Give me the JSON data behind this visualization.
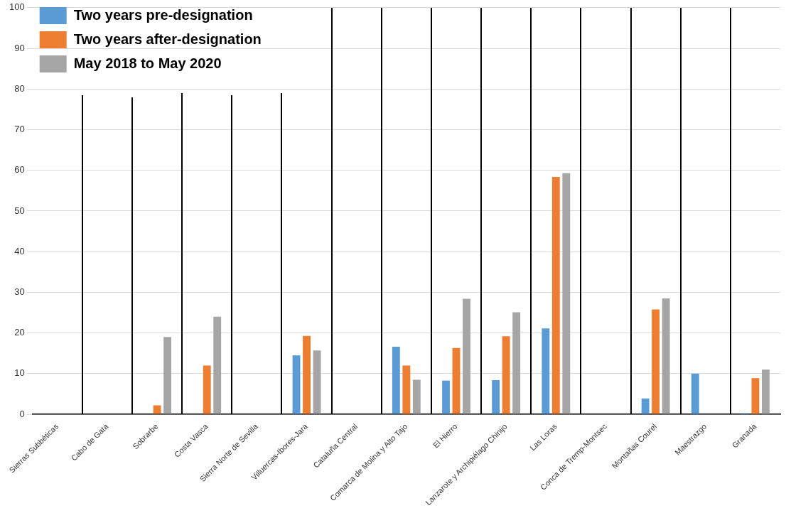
{
  "chart_data": {
    "type": "bar",
    "categories": [
      "Sierras Subbéticas",
      "Cabo de Gata",
      "Sobrarbe",
      "Costa Vasca",
      "Sierra Norte de Sevilla",
      "Villuercas-Ibores-Jara",
      "Cataluña Central",
      "Comarca de Molina y Alto Tajo",
      "El Hierro",
      "Lanzarote y Archipiélago Chinijo",
      "Las Loras",
      "Conca de Tremp-Montsec",
      "Montañas Courel",
      "Maestrazgo",
      "Granada"
    ],
    "series": [
      {
        "name": "Two years pre-designation",
        "color": "#5b9bd5",
        "values": [
          0,
          0,
          0,
          0,
          0,
          14.5,
          0,
          16.6,
          8.3,
          8.4,
          21.1,
          0,
          3.9,
          10,
          0.3
        ]
      },
      {
        "name": "Two years after-designation",
        "color": "#ed7d31",
        "values": [
          0,
          0,
          2.2,
          12,
          0,
          19.3,
          0,
          12,
          16.3,
          19.2,
          58.4,
          0,
          25.8,
          0,
          8.9
        ]
      },
      {
        "name": "May 2018 to May 2020",
        "color": "#a5a5a5",
        "values": [
          0,
          0,
          19,
          24,
          0,
          15.7,
          0,
          8.5,
          28.4,
          25.1,
          59.3,
          0,
          28.5,
          0,
          11
        ]
      }
    ],
    "ylim": [
      0,
      100
    ],
    "yticks": [
      0,
      10,
      20,
      30,
      40,
      50,
      60,
      70,
      80,
      90,
      100
    ],
    "grid": "y",
    "legend": "top left"
  }
}
